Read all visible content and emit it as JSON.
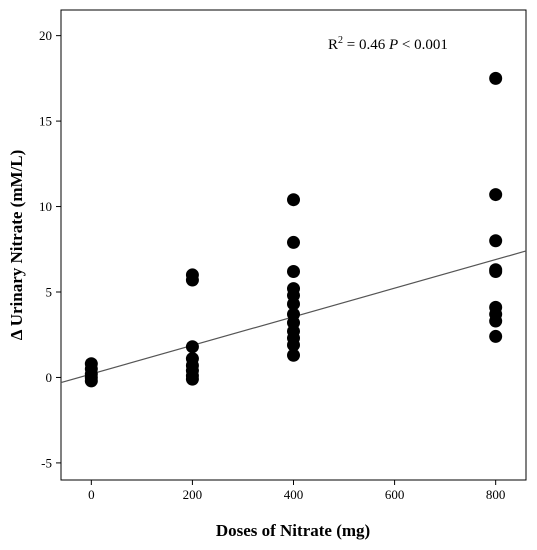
{
  "chart_data": {
    "type": "scatter",
    "title": "",
    "xlabel": "Doses of Nitrate (mg)",
    "ylabel": "Δ Urinary Nitrate (mM/L)",
    "xlim": [
      -60,
      860
    ],
    "ylim": [
      -6,
      21.5
    ],
    "xticks": [
      0,
      200,
      400,
      600,
      800
    ],
    "yticks": [
      -5,
      0,
      5,
      10,
      15,
      20
    ],
    "grid": false,
    "annotation": {
      "r2_label": "R",
      "r2_sup": "2",
      "r2_value": " = 0.46 ",
      "p_label": "P",
      "p_value": " < 0.001"
    },
    "fit_line": {
      "x": [
        -60,
        860
      ],
      "y": [
        -0.3,
        7.4
      ]
    },
    "series": [
      {
        "points": [
          [
            0,
            0.8
          ],
          [
            0,
            0.5
          ],
          [
            0,
            0.2
          ],
          [
            0,
            0.0
          ],
          [
            0,
            -0.2
          ],
          [
            200,
            6.0
          ],
          [
            200,
            5.7
          ],
          [
            200,
            1.8
          ],
          [
            200,
            1.1
          ],
          [
            200,
            0.7
          ],
          [
            200,
            0.4
          ],
          [
            200,
            0.1
          ],
          [
            200,
            -0.1
          ],
          [
            400,
            10.4
          ],
          [
            400,
            7.9
          ],
          [
            400,
            6.2
          ],
          [
            400,
            5.2
          ],
          [
            400,
            4.8
          ],
          [
            400,
            4.3
          ],
          [
            400,
            3.7
          ],
          [
            400,
            3.2
          ],
          [
            400,
            2.7
          ],
          [
            400,
            2.3
          ],
          [
            400,
            1.9
          ],
          [
            400,
            1.3
          ],
          [
            800,
            17.5
          ],
          [
            800,
            10.7
          ],
          [
            800,
            8.0
          ],
          [
            800,
            6.3
          ],
          [
            800,
            6.2
          ],
          [
            800,
            4.1
          ],
          [
            800,
            3.7
          ],
          [
            800,
            3.3
          ],
          [
            800,
            2.4
          ]
        ]
      }
    ]
  }
}
